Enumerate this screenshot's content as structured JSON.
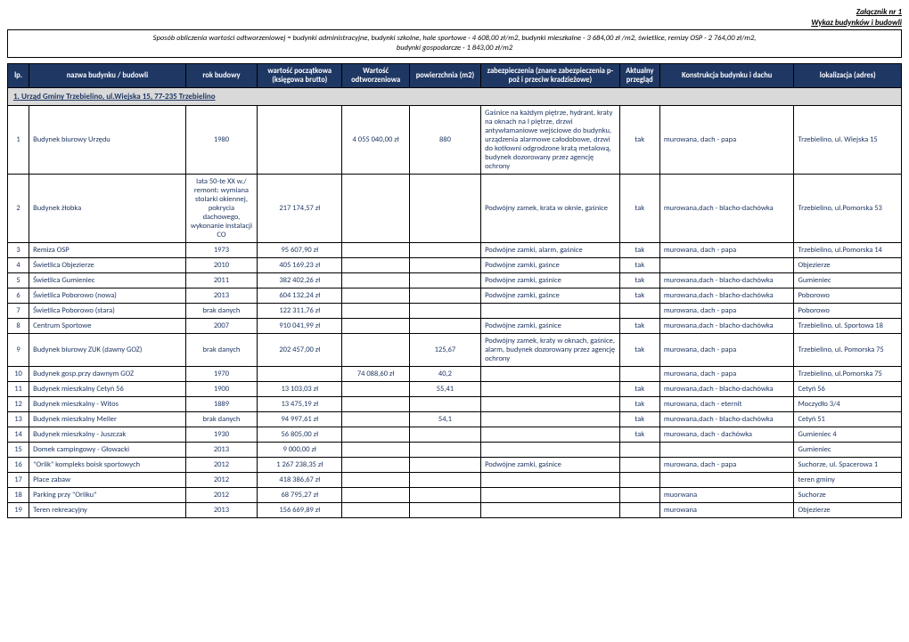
{
  "header": {
    "line1": "Załącznik nr 1",
    "line2": "Wykaz budynków i budowli"
  },
  "method": {
    "line1": "Sposób obliczenia wartości odtworzeniowej = budynki administracyjne, budynki szkolne, hale sportowe - 4 608,00 zł/m2, budynki mieszkalne - 3 684,00 zł /m2, świetlice, remizy OSP - 2 764,00 zł/m2,",
    "line2": "budynki gospodarcze - 1 843,00 zł/m2"
  },
  "columns": {
    "lp": "lp.",
    "name": "nazwa budynku / budowli",
    "year": "rok budowy",
    "val0": "wartość początkowa (księgowa brutto)",
    "valr": "Wartość odtworzeniowa",
    "area": "powierzchnia (m2)",
    "sec": "zabezpieczenia (znane zabezpieczenia p-poż i przeciw kradzieżowe)",
    "insp": "Aktualny przegląd",
    "cons": "Konstrukcja budynku i dachu",
    "loc": "lokalizacja (adres)"
  },
  "section": {
    "title": "1. Urząd Gminy Trzebielino, ul.Wiejska 15, 77-235 Trzebielino"
  },
  "rows": [
    {
      "lp": "1",
      "name": "Budynek biurowy Urzędu",
      "year": "1980",
      "val0": "",
      "valr": "4 055 040,00 zł",
      "area": "880",
      "sec": "Gaśnice na każdym piętrze, hydrant, kraty na oknach na I piętrze, drzwi antywłamaniowe wejściowe do budynku, urządzenia alarmowe całodobowe, drzwi do kotłowni odgrodzone kratą metalową, budynek dozorowany przez agencję ochrony",
      "insp": "tak",
      "cons": "murowana, dach - papa",
      "loc": "Trzebielino, ul. Wiejska 15"
    },
    {
      "lp": "2",
      "name": "Budynek żłobka",
      "year": "lata 50-te XX w./ remont: wymiana stolarki okiennej, pokrycia dachowego, wykonanie instalacji CO",
      "val0": "217 174,57 zł",
      "valr": "",
      "area": "",
      "sec": "Podwójny zamek, krata w oknie, gaśnice",
      "insp": "tak",
      "cons": "murowana,dach - blacho-dachówka",
      "loc": "Trzebielino, ul.Pomorska 53"
    },
    {
      "lp": "3",
      "name": "Remiza OSP",
      "year": "1973",
      "val0": "95 607,90 zł",
      "valr": "",
      "area": "",
      "sec": "Podwójne zamki, alarm, gaśnice",
      "insp": "tak",
      "cons": "murowana, dach - papa",
      "loc": "Trzebielino, ul.Pomorska 14"
    },
    {
      "lp": "4",
      "name": "Świetlica  Objezierze",
      "year": "2010",
      "val0": "405 169,23 zł",
      "valr": "",
      "area": "",
      "sec": "Podwójne zamki, gaśnce",
      "insp": "tak",
      "cons": "",
      "loc": "Objezierze"
    },
    {
      "lp": "5",
      "name": "Świetlica Gumieniec",
      "year": "2011",
      "val0": "382 402,26 zł",
      "valr": "",
      "area": "",
      "sec": "Podwójne zamki, gaśnice",
      "insp": "tak",
      "cons": "murowana,dach - blacho-dachówka",
      "loc": "Gumieniec"
    },
    {
      "lp": "6",
      "name": "Świetlica Poborowo (nowa)",
      "year": "2013",
      "val0": "604 132,24 zł",
      "valr": "",
      "area": "",
      "sec": "Podwójne zamki, gaśnce",
      "insp": "tak",
      "cons": "murowana,dach - blacho-dachówka",
      "loc": "Poborowo"
    },
    {
      "lp": "7",
      "name": "Świetlica Poborowo (stara)",
      "year": "brak danych",
      "val0": "122 311,76 zł",
      "valr": "",
      "area": "",
      "sec": "",
      "insp": "",
      "cons": "murowana, dach - papa",
      "loc": "Poborowo"
    },
    {
      "lp": "8",
      "name": "Centrum Sportowe",
      "year": "2007",
      "val0": "910 041,99 zł",
      "valr": "",
      "area": "",
      "sec": "Podwójne zamki, gaśnice",
      "insp": "tak",
      "cons": "murowana,dach - blacho-dachówka",
      "loc": "Trzebielino, ul. Sportowa 18"
    },
    {
      "lp": "9",
      "name": "Budynek biurowy ZUK (dawny GOZ)",
      "year": "brak danych",
      "val0": "202 457,00 zł",
      "valr": "",
      "area": "125,67",
      "sec": "Podwójny zamek, kraty w oknach, gaśnice, alarm, budynek dozorowany przez agencję ochrony",
      "insp": "tak",
      "cons": "murowana, dach - papa",
      "loc": "Trzebielino, ul. Pomorska 75"
    },
    {
      "lp": "10",
      "name": "Budynek gosp.przy dawnym GOZ",
      "year": "1970",
      "val0": "",
      "valr": "74 088,60 zł",
      "area": "40,2",
      "sec": "",
      "insp": "",
      "cons": "murowana, dach - papa",
      "loc": "Trzebielino, ul.Pomorska 75"
    },
    {
      "lp": "11",
      "name": "Budynek mieszkalny Cetyń 56",
      "year": "1900",
      "val0": "13 103,03 zł",
      "valr": "",
      "area": "55,41",
      "sec": "",
      "insp": "tak",
      "cons": "murowana,dach - blacho-dachówka",
      "loc": "Cetyń 56"
    },
    {
      "lp": "12",
      "name": "Budynek mieszkalny - Witos",
      "year": "1889",
      "val0": "13 475,19 zł",
      "valr": "",
      "area": "",
      "sec": "",
      "insp": "tak",
      "cons": "murowana, dach - eternit",
      "loc": "Moczydło 3/4"
    },
    {
      "lp": "13",
      "name": "Budynek mieszkalny Meller",
      "year": "brak danych",
      "val0": "94 997,61 zł",
      "valr": "",
      "area": "54,1",
      "sec": "",
      "insp": "tak",
      "cons": "murowana,dach - blacho-dachówka",
      "loc": "Cetyń 51"
    },
    {
      "lp": "14",
      "name": "Budynek mieszkalny - Juszczak",
      "year": "1930",
      "val0": "56 805,00 zł",
      "valr": "",
      "area": "",
      "sec": "",
      "insp": "tak",
      "cons": "murowana, dach - dachówka",
      "loc": "Gumieniec 4"
    },
    {
      "lp": "15",
      "name": "Domek campingowy - Głowacki",
      "year": "2013",
      "val0": "9 000,00 zł",
      "valr": "",
      "area": "",
      "sec": "",
      "insp": "",
      "cons": "",
      "loc": "Gumieniec"
    },
    {
      "lp": "16",
      "name": "\"Orlik\" kompleks boisk sportowych",
      "year": "2012",
      "val0": "1 267 238,35 zł",
      "valr": "",
      "area": "",
      "sec": "Podwójne zamki, gaśnice",
      "insp": "",
      "cons": "murowana, dach - papa",
      "loc": "Suchorze, ul. Spacerowa 1"
    },
    {
      "lp": "17",
      "name": "Place zabaw",
      "year": "2012",
      "val0": "418 386,67 zł",
      "valr": "",
      "area": "",
      "sec": "",
      "insp": "",
      "cons": "",
      "loc": "teren gminy"
    },
    {
      "lp": "18",
      "name": "Parking przy \"Orliku\"",
      "year": "2012",
      "val0": "68 795,27 zł",
      "valr": "",
      "area": "",
      "sec": "",
      "insp": "",
      "cons": "muorwana",
      "loc": "Suchorze"
    },
    {
      "lp": "19",
      "name": "Teren rekreacyjny",
      "year": "2013",
      "val0": "156 669,89 zł",
      "valr": "",
      "area": "",
      "sec": "",
      "insp": "",
      "cons": "murowana",
      "loc": "Objezierze"
    }
  ]
}
